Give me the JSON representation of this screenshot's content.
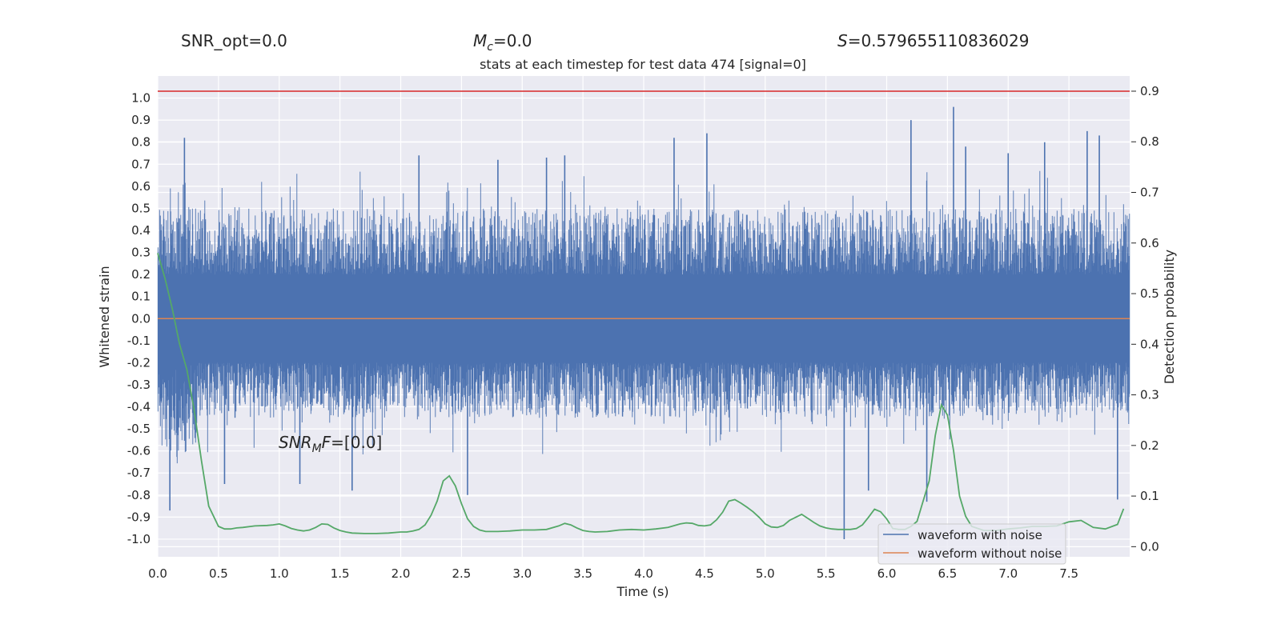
{
  "header": {
    "snr_opt": "SNR_opt=0.0",
    "mc_symbol": "M",
    "mc_sub": "c",
    "mc_value": "=0.0",
    "s_symbol": "S",
    "s_value": "=0.579655110836029"
  },
  "chart_data": {
    "type": "line",
    "title": "stats at each timestep for test data 474 [signal=0]",
    "xlabel": "Time (s)",
    "ylabel": "Whitened strain",
    "y2label": "Detection probability",
    "xlim": [
      0.0,
      8.0
    ],
    "ylim": [
      -1.08,
      1.1
    ],
    "y2lim": [
      -0.02,
      0.93
    ],
    "x_ticks": [
      "0.0",
      "0.5",
      "1.0",
      "1.5",
      "2.0",
      "2.5",
      "3.0",
      "3.5",
      "4.0",
      "4.5",
      "5.0",
      "5.5",
      "6.0",
      "6.5",
      "7.0",
      "7.5"
    ],
    "y_ticks": [
      "1.0",
      "0.9",
      "0.8",
      "0.7",
      "0.6",
      "0.5",
      "0.4",
      "0.3",
      "0.2",
      "0.1",
      "0.0",
      "-0.1",
      "-0.2",
      "-0.3",
      "-0.4",
      "-0.5",
      "-0.6",
      "-0.7",
      "-0.8",
      "-0.9",
      "-1.0"
    ],
    "y2_ticks": [
      "0.9",
      "0.8",
      "0.7",
      "0.6",
      "0.5",
      "0.4",
      "0.3",
      "0.2",
      "0.1",
      "0.0"
    ],
    "annotation": {
      "snr_mf_symbol": "SNR",
      "snr_mf_sub": "M",
      "snr_mf_rest": "F",
      "snr_mf_value": "=[0.0]"
    },
    "threshold": {
      "value": 0.9,
      "color": "#d62728"
    },
    "grid": true,
    "legend_position": "bottom-right",
    "series": [
      {
        "name": "waveform with noise",
        "color": "#4c72b0",
        "sample_rate": 2048,
        "typical_range": [
          -0.45,
          0.5
        ],
        "peaks": [
          {
            "x": 0.1,
            "y": -0.87
          },
          {
            "x": 0.22,
            "y": 0.82
          },
          {
            "x": 0.55,
            "y": -0.75
          },
          {
            "x": 1.17,
            "y": -0.75
          },
          {
            "x": 1.6,
            "y": -0.78
          },
          {
            "x": 2.15,
            "y": 0.74
          },
          {
            "x": 2.55,
            "y": -0.8
          },
          {
            "x": 2.8,
            "y": 0.72
          },
          {
            "x": 3.2,
            "y": 0.73
          },
          {
            "x": 3.35,
            "y": 0.74
          },
          {
            "x": 4.25,
            "y": 0.82
          },
          {
            "x": 4.52,
            "y": 0.84
          },
          {
            "x": 5.65,
            "y": -1.0
          },
          {
            "x": 5.85,
            "y": -0.78
          },
          {
            "x": 6.2,
            "y": 0.9
          },
          {
            "x": 6.33,
            "y": -0.83
          },
          {
            "x": 6.55,
            "y": 0.96
          },
          {
            "x": 6.65,
            "y": 0.78
          },
          {
            "x": 7.0,
            "y": 0.75
          },
          {
            "x": 7.3,
            "y": 0.8
          },
          {
            "x": 7.65,
            "y": 0.85
          },
          {
            "x": 7.75,
            "y": 0.83
          },
          {
            "x": 7.9,
            "y": -0.82
          }
        ]
      },
      {
        "name": "waveform without noise",
        "color": "#dd8452",
        "y": 0.0
      },
      {
        "name": "Detection probability",
        "color": "#55a868",
        "axis": "right",
        "x": [
          0.0,
          0.06,
          0.12,
          0.18,
          0.24,
          0.3,
          0.36,
          0.42,
          0.5,
          0.55,
          0.6,
          0.65,
          0.7,
          0.8,
          0.9,
          0.95,
          1.0,
          1.05,
          1.1,
          1.15,
          1.2,
          1.25,
          1.3,
          1.35,
          1.4,
          1.45,
          1.5,
          1.55,
          1.6,
          1.7,
          1.8,
          1.9,
          2.0,
          2.05,
          2.1,
          2.15,
          2.2,
          2.25,
          2.3,
          2.35,
          2.4,
          2.45,
          2.5,
          2.55,
          2.6,
          2.65,
          2.7,
          2.8,
          2.9,
          3.0,
          3.1,
          3.2,
          3.3,
          3.35,
          3.4,
          3.45,
          3.5,
          3.55,
          3.6,
          3.7,
          3.8,
          3.9,
          4.0,
          4.1,
          4.2,
          4.3,
          4.35,
          4.4,
          4.45,
          4.5,
          4.55,
          4.6,
          4.65,
          4.7,
          4.75,
          4.8,
          4.85,
          4.9,
          4.95,
          5.0,
          5.05,
          5.1,
          5.15,
          5.2,
          5.25,
          5.3,
          5.35,
          5.4,
          5.45,
          5.5,
          5.55,
          5.6,
          5.65,
          5.7,
          5.75,
          5.8,
          5.85,
          5.9,
          5.95,
          6.0,
          6.05,
          6.1,
          6.15,
          6.2,
          6.25,
          6.3,
          6.35,
          6.4,
          6.45,
          6.5,
          6.55,
          6.6,
          6.65,
          6.7,
          6.8,
          6.9,
          7.0,
          7.1,
          7.2,
          7.3,
          7.4,
          7.5,
          7.6,
          7.7,
          7.8,
          7.9,
          7.95
        ],
        "values": [
          0.58,
          0.53,
          0.47,
          0.4,
          0.35,
          0.27,
          0.17,
          0.08,
          0.04,
          0.035,
          0.035,
          0.037,
          0.038,
          0.041,
          0.042,
          0.043,
          0.045,
          0.041,
          0.036,
          0.033,
          0.031,
          0.033,
          0.038,
          0.045,
          0.044,
          0.037,
          0.032,
          0.029,
          0.027,
          0.026,
          0.026,
          0.027,
          0.029,
          0.029,
          0.031,
          0.034,
          0.043,
          0.062,
          0.09,
          0.13,
          0.14,
          0.12,
          0.085,
          0.055,
          0.04,
          0.033,
          0.03,
          0.03,
          0.031,
          0.033,
          0.033,
          0.034,
          0.041,
          0.046,
          0.043,
          0.037,
          0.032,
          0.03,
          0.029,
          0.03,
          0.033,
          0.034,
          0.033,
          0.035,
          0.038,
          0.045,
          0.047,
          0.046,
          0.042,
          0.041,
          0.043,
          0.053,
          0.068,
          0.09,
          0.093,
          0.086,
          0.078,
          0.069,
          0.058,
          0.045,
          0.039,
          0.038,
          0.042,
          0.052,
          0.058,
          0.064,
          0.056,
          0.048,
          0.041,
          0.037,
          0.035,
          0.034,
          0.034,
          0.034,
          0.036,
          0.043,
          0.058,
          0.074,
          0.069,
          0.055,
          0.036,
          0.034,
          0.034,
          0.04,
          0.05,
          0.09,
          0.13,
          0.22,
          0.28,
          0.26,
          0.19,
          0.1,
          0.06,
          0.04,
          0.032,
          0.032,
          0.035,
          0.037,
          0.04,
          0.04,
          0.041,
          0.049,
          0.052,
          0.038,
          0.035,
          0.044,
          0.075
        ]
      }
    ]
  }
}
